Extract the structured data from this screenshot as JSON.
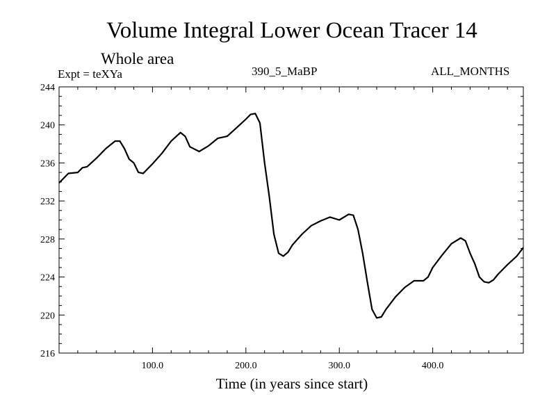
{
  "header": {
    "title": "Volume Integral Lower Ocean Tracer 14",
    "subtitle": "Whole area",
    "expt": "Expt = teXYa",
    "run_id": "390_5_MaBP",
    "months": "ALL_MONTHS"
  },
  "chart_data": {
    "type": "line",
    "title": "Volume Integral Lower Ocean Tracer 14",
    "subtitle": "Whole area",
    "xlabel": "Time (in years since start)",
    "ylabel": "",
    "xlim": [
      0,
      497
    ],
    "ylim": [
      216,
      244
    ],
    "xticks": [
      100,
      200,
      300,
      400
    ],
    "xtick_labels": [
      "100.0",
      "200.0",
      "300.0",
      "400.0"
    ],
    "yticks": [
      216,
      220,
      224,
      228,
      232,
      236,
      240,
      244
    ],
    "ytick_labels": [
      "216",
      "220",
      "224",
      "228",
      "232",
      "236",
      "240",
      "244"
    ],
    "grid": false,
    "legend": "none",
    "line_color": "#000000",
    "series": [
      {
        "x": [
          0,
          10,
          20,
          25,
          30,
          40,
          50,
          60,
          65,
          70,
          75,
          80,
          85,
          90,
          100,
          110,
          120,
          130,
          135,
          140,
          150,
          160,
          170,
          180,
          190,
          200,
          205,
          210,
          215,
          220,
          225,
          230,
          235,
          240,
          245,
          250,
          260,
          270,
          280,
          290,
          300,
          310,
          315,
          320,
          325,
          330,
          335,
          340,
          345,
          350,
          360,
          370,
          380,
          390,
          395,
          400,
          410,
          420,
          430,
          435,
          440,
          445,
          450,
          455,
          460,
          465,
          470,
          480,
          490,
          497
        ],
        "y": [
          233.9,
          234.9,
          235.0,
          235.5,
          235.6,
          236.5,
          237.5,
          238.3,
          238.3,
          237.5,
          236.4,
          236.0,
          235.0,
          234.9,
          235.9,
          237.0,
          238.3,
          239.2,
          238.8,
          237.7,
          237.2,
          237.8,
          238.6,
          238.8,
          239.7,
          240.6,
          241.1,
          241.2,
          240.2,
          236.0,
          232.5,
          228.5,
          226.5,
          226.2,
          226.6,
          227.4,
          228.5,
          229.4,
          229.9,
          230.3,
          230.0,
          230.6,
          230.5,
          229.0,
          226.5,
          223.5,
          220.6,
          219.7,
          219.8,
          220.6,
          221.9,
          222.9,
          223.6,
          223.6,
          224.0,
          225.0,
          226.3,
          227.5,
          228.1,
          227.8,
          226.5,
          225.4,
          224.0,
          223.5,
          223.4,
          223.7,
          224.3,
          225.3,
          226.2,
          227.1
        ]
      }
    ]
  }
}
